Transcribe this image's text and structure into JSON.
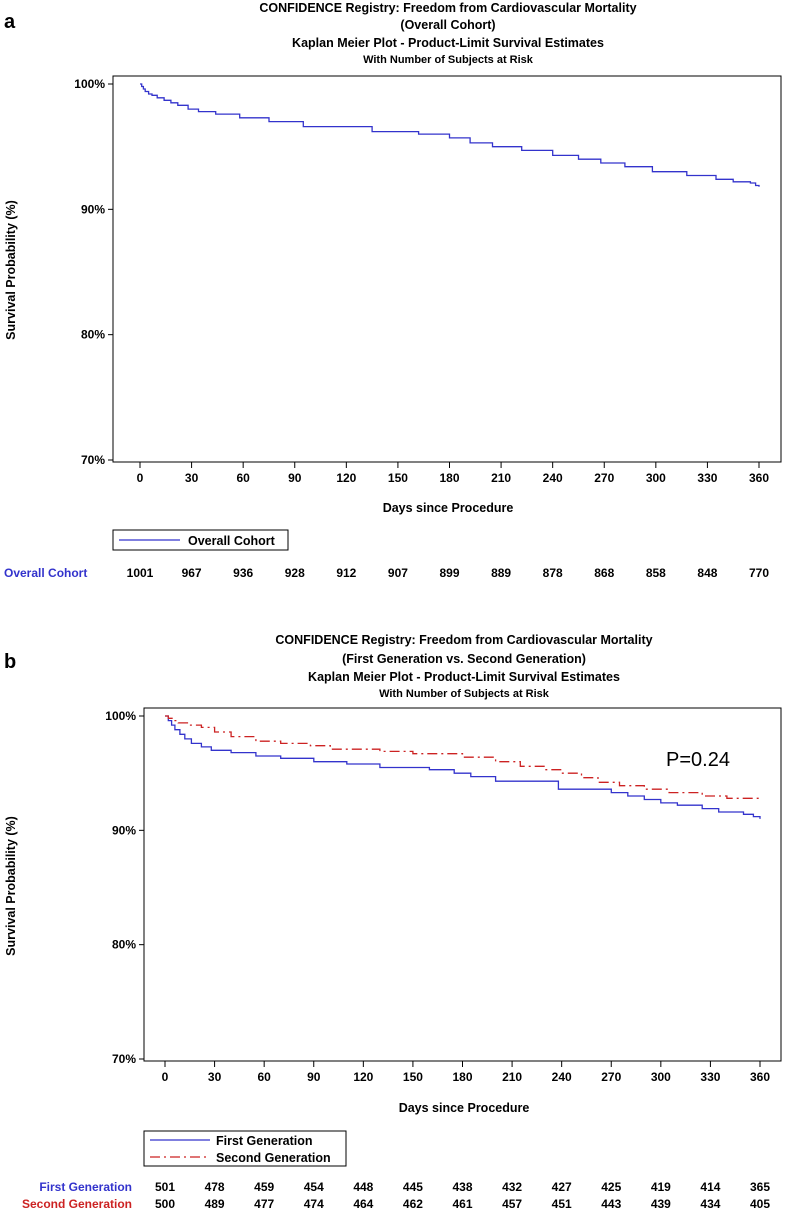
{
  "chart_data": [
    {
      "panel": "a",
      "type": "line",
      "title_lines": [
        "CONFIDENCE Registry: Freedom from Cardiovascular Mortality",
        "(Overall Cohort)",
        "Kaplan Meier Plot - Product-Limit Survival Estimates"
      ],
      "subtitle": "With Number of Subjects at Risk",
      "xlabel": "Days since Procedure",
      "ylabel": "Survival Probability (%)",
      "xlim": [
        0,
        360
      ],
      "ylim": [
        70,
        100
      ],
      "x_ticks": [
        0,
        30,
        60,
        90,
        120,
        150,
        180,
        210,
        240,
        270,
        300,
        330,
        360
      ],
      "y_ticks": [
        70,
        80,
        90,
        100
      ],
      "y_tick_labels": [
        "70%",
        "80%",
        "90%",
        "100%"
      ],
      "series": [
        {
          "name": "Overall Cohort",
          "color": "#3333cc",
          "dash": "solid",
          "x": [
            0,
            1,
            2,
            3,
            5,
            7,
            10,
            14,
            18,
            22,
            28,
            34,
            44,
            58,
            75,
            95,
            135,
            162,
            180,
            192,
            205,
            222,
            240,
            255,
            268,
            282,
            298,
            318,
            335,
            345,
            355,
            358,
            360
          ],
          "y": [
            100,
            99.8,
            99.6,
            99.4,
            99.2,
            99.1,
            98.9,
            98.7,
            98.5,
            98.3,
            98.0,
            97.8,
            97.6,
            97.3,
            97.0,
            96.6,
            96.2,
            96.0,
            95.7,
            95.3,
            95.0,
            94.7,
            94.3,
            94.0,
            93.7,
            93.4,
            93.0,
            92.7,
            92.4,
            92.2,
            92.1,
            91.9,
            91.8
          ]
        }
      ],
      "legend_entries": [
        "Overall Cohort"
      ],
      "risk_table": [
        {
          "label": "Overall Cohort",
          "color": "#3333cc",
          "values": [
            "1001",
            "967",
            "936",
            "928",
            "912",
            "907",
            "899",
            "889",
            "878",
            "868",
            "858",
            "848",
            "770"
          ]
        }
      ]
    },
    {
      "panel": "b",
      "type": "line",
      "title_lines": [
        "CONFIDENCE Registry: Freedom from Cardiovascular Mortality",
        "(First Generation vs. Second Generation)",
        "Kaplan Meier Plot - Product-Limit Survival Estimates"
      ],
      "subtitle": "With Number of Subjects at Risk",
      "xlabel": "Days since Procedure",
      "ylabel": "Survival Probability (%)",
      "xlim": [
        0,
        360
      ],
      "ylim": [
        70,
        100
      ],
      "x_ticks": [
        0,
        30,
        60,
        90,
        120,
        150,
        180,
        210,
        240,
        270,
        300,
        330,
        360
      ],
      "y_ticks": [
        70,
        80,
        90,
        100
      ],
      "y_tick_labels": [
        "70%",
        "80%",
        "90%",
        "100%"
      ],
      "annotation": "P=0.24",
      "series": [
        {
          "name": "First Generation",
          "color": "#3333cc",
          "dash": "solid",
          "x": [
            0,
            2,
            4,
            6,
            9,
            12,
            16,
            22,
            28,
            40,
            55,
            70,
            90,
            110,
            130,
            160,
            175,
            185,
            200,
            238,
            270,
            280,
            290,
            300,
            310,
            325,
            335,
            350,
            356,
            360
          ],
          "y": [
            100,
            99.6,
            99.2,
            98.8,
            98.4,
            98.0,
            97.6,
            97.3,
            97.0,
            96.8,
            96.5,
            96.3,
            96.0,
            95.8,
            95.5,
            95.3,
            95.0,
            94.7,
            94.3,
            93.6,
            93.3,
            93.0,
            92.7,
            92.4,
            92.2,
            91.9,
            91.6,
            91.4,
            91.2,
            91.0
          ]
        },
        {
          "name": "Second Generation",
          "color": "#cc2222",
          "dash": "dashed",
          "x": [
            0,
            2,
            5,
            8,
            14,
            22,
            30,
            40,
            55,
            70,
            88,
            100,
            130,
            150,
            180,
            200,
            215,
            230,
            240,
            252,
            262,
            275,
            290,
            305,
            325,
            340,
            360
          ],
          "y": [
            100,
            99.8,
            99.6,
            99.4,
            99.2,
            99.0,
            98.6,
            98.2,
            97.8,
            97.6,
            97.4,
            97.1,
            96.9,
            96.7,
            96.4,
            96.0,
            95.6,
            95.3,
            95.0,
            94.6,
            94.2,
            93.9,
            93.6,
            93.3,
            93.0,
            92.8,
            92.6
          ]
        }
      ],
      "legend_entries": [
        "First Generation",
        "Second Generation"
      ],
      "risk_table": [
        {
          "label": "First Generation",
          "color": "#3333cc",
          "values": [
            "501",
            "478",
            "459",
            "454",
            "448",
            "445",
            "438",
            "432",
            "427",
            "425",
            "419",
            "414",
            "365"
          ]
        },
        {
          "label": "Second Generation",
          "color": "#cc2222",
          "values": [
            "500",
            "489",
            "477",
            "474",
            "464",
            "462",
            "461",
            "457",
            "451",
            "443",
            "439",
            "434",
            "405"
          ]
        }
      ]
    }
  ]
}
